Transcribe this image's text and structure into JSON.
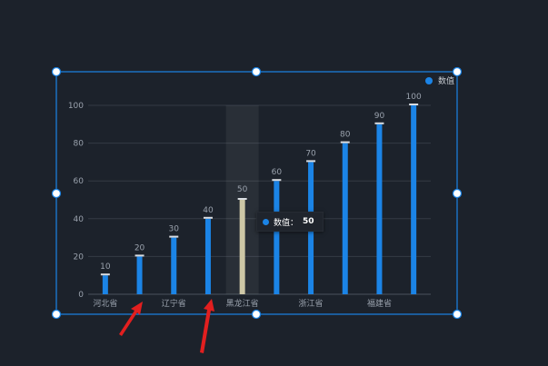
{
  "legend": {
    "label": "数值",
    "color": "#1b84e6"
  },
  "tooltip": {
    "series": "数值",
    "separator": "：",
    "value": "50"
  },
  "colors": {
    "bar": "#1b84e6",
    "highlight_bar": "#cdc7a6",
    "selection": "#1b84e6",
    "annotation_arrow": "#e21f1f"
  },
  "chart_data": {
    "type": "bar",
    "x": [
      1,
      2,
      3,
      4,
      5,
      6,
      7,
      8,
      9,
      10
    ],
    "values": [
      10,
      20,
      30,
      40,
      50,
      60,
      70,
      80,
      90,
      100
    ],
    "category_labels": [
      {
        "at": 1,
        "label": "河北省"
      },
      {
        "at": 3,
        "label": "辽宁省"
      },
      {
        "at": 5,
        "label": "黑龙江省"
      },
      {
        "at": 7,
        "label": "浙江省"
      },
      {
        "at": 9,
        "label": "福建省"
      }
    ],
    "y_ticks": [
      0,
      20,
      40,
      60,
      80,
      100
    ],
    "ylim": [
      0,
      100
    ],
    "highlighted_index": 4,
    "legend": "top-right",
    "grid": true
  }
}
